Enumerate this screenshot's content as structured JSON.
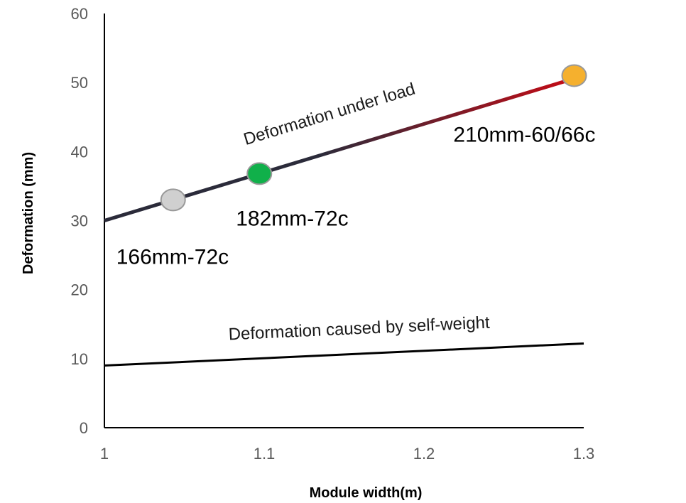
{
  "chart_data": {
    "type": "line",
    "title": "",
    "xlabel": "Module width(m)",
    "ylabel": "Deformation (mm)",
    "xlim": [
      1,
      1.3
    ],
    "ylim": [
      0,
      60
    ],
    "x_ticks": [
      1,
      1.1,
      1.2,
      1.3
    ],
    "x_tick_labels": [
      "1",
      "1.1",
      "1.2",
      "1.3"
    ],
    "y_ticks": [
      0,
      10,
      20,
      30,
      40,
      50,
      60
    ],
    "y_tick_labels": [
      "0",
      "10",
      "20",
      "30",
      "40",
      "50",
      "60"
    ],
    "grid": false,
    "series": [
      {
        "label": "Deformation under load",
        "x": [
          1.0,
          1.3
        ],
        "y": [
          30,
          51
        ],
        "color_start": "#2b2b3a",
        "color_end": "#cc0a14"
      },
      {
        "label": "Deformation caused by self-weight",
        "x": [
          1.0,
          1.3
        ],
        "y": [
          9,
          12.2
        ],
        "color": "#000000"
      }
    ],
    "points": [
      {
        "label": "166mm-72c",
        "x": 1.043,
        "y": 33,
        "color": "#d0d0d0"
      },
      {
        "label": "182mm-72c",
        "x": 1.097,
        "y": 36.8,
        "color": "#10b04a"
      },
      {
        "label": "210mm-60/66c",
        "x": 1.294,
        "y": 51,
        "color": "#f5b02e"
      }
    ]
  }
}
